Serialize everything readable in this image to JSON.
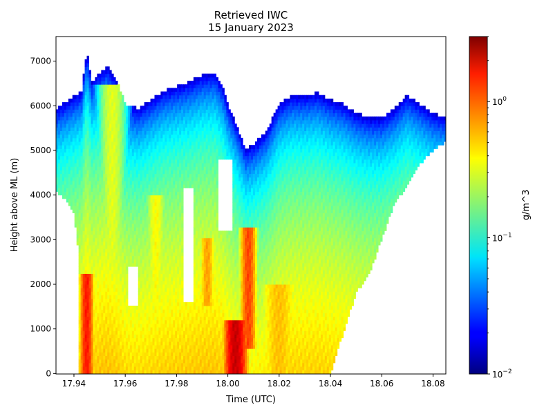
{
  "chart_data": {
    "type": "heatmap",
    "title": "Retrieved IWC",
    "subtitle": "15 January 2023",
    "xlabel": "Time (UTC)",
    "ylabel": "Height above ML (m)",
    "xlim": [
      17.933,
      18.085
    ],
    "ylim": [
      -10,
      7550
    ],
    "xticks": [
      "17.94",
      "17.96",
      "17.98",
      "18.00",
      "18.02",
      "18.04",
      "18.06",
      "18.08"
    ],
    "xtick_values": [
      17.94,
      17.96,
      17.98,
      18.0,
      18.02,
      18.04,
      18.06,
      18.08
    ],
    "yticks": [
      "0",
      "1000",
      "2000",
      "3000",
      "4000",
      "5000",
      "6000",
      "7000"
    ],
    "ytick_values": [
      0,
      1000,
      2000,
      3000,
      4000,
      5000,
      6000,
      7000
    ],
    "colorbar": {
      "label": "g/m^3",
      "scale": "log",
      "colormap": "jet",
      "range": [
        0.01,
        3.0
      ],
      "ticks": [
        {
          "value": 0.01,
          "base": "10",
          "exp": "−2"
        },
        {
          "value": 0.1,
          "base": "10",
          "exp": "−1"
        },
        {
          "value": 1.0,
          "base": "10",
          "exp": "0"
        }
      ]
    },
    "field": {
      "cloud_top": [
        [
          17.933,
          5900
        ],
        [
          17.938,
          6100
        ],
        [
          17.943,
          6300
        ],
        [
          17.945,
          7200
        ],
        [
          17.947,
          6500
        ],
        [
          17.95,
          6700
        ],
        [
          17.953,
          6850
        ],
        [
          17.957,
          6500
        ],
        [
          17.96,
          6000
        ],
        [
          17.965,
          5900
        ],
        [
          17.97,
          6100
        ],
        [
          17.975,
          6300
        ],
        [
          17.98,
          6400
        ],
        [
          17.985,
          6500
        ],
        [
          17.99,
          6650
        ],
        [
          17.995,
          6700
        ],
        [
          17.998,
          6400
        ],
        [
          18.0,
          6000
        ],
        [
          18.003,
          5600
        ],
        [
          18.007,
          5000
        ],
        [
          18.01,
          5100
        ],
        [
          18.015,
          5400
        ],
        [
          18.02,
          6000
        ],
        [
          18.025,
          6200
        ],
        [
          18.03,
          6200
        ],
        [
          18.035,
          6250
        ],
        [
          18.04,
          6100
        ],
        [
          18.045,
          6000
        ],
        [
          18.05,
          5800
        ],
        [
          18.055,
          5700
        ],
        [
          18.06,
          5700
        ],
        [
          18.065,
          5900
        ],
        [
          18.07,
          6200
        ],
        [
          18.075,
          6000
        ],
        [
          18.08,
          5800
        ],
        [
          18.085,
          5700
        ]
      ],
      "left_cloud_base": [
        [
          17.933,
          4100
        ],
        [
          17.938,
          3800
        ],
        [
          17.94,
          3600
        ],
        [
          17.942,
          2600
        ]
      ],
      "right_edge": [
        [
          18.04,
          0
        ],
        [
          18.045,
          900
        ],
        [
          18.05,
          1800
        ],
        [
          18.055,
          2200
        ],
        [
          18.06,
          3000
        ],
        [
          18.065,
          3800
        ],
        [
          18.07,
          4200
        ],
        [
          18.075,
          4700
        ],
        [
          18.08,
          5000
        ],
        [
          18.085,
          5200
        ]
      ],
      "cores": [
        {
          "t": 17.945,
          "h_min": 0,
          "h_max": 2200,
          "half_width": 0.0025,
          "iwc": 1.3
        },
        {
          "t": 17.955,
          "h_min": 0,
          "h_max": 6500,
          "half_width": 0.005,
          "iwc": 0.3
        },
        {
          "t": 17.972,
          "h_min": 0,
          "h_max": 4000,
          "half_width": 0.004,
          "iwc": 0.35
        },
        {
          "t": 17.992,
          "h_min": 1500,
          "h_max": 3000,
          "half_width": 0.003,
          "iwc": 0.6
        },
        {
          "t": 18.003,
          "h_min": 0,
          "h_max": 1200,
          "half_width": 0.004,
          "iwc": 2.0
        },
        {
          "t": 18.008,
          "h_min": 600,
          "h_max": 3300,
          "half_width": 0.003,
          "iwc": 1.0
        },
        {
          "t": 18.02,
          "h_min": 0,
          "h_max": 2000,
          "half_width": 0.008,
          "iwc": 0.5
        }
      ],
      "gaps": [
        {
          "t": 17.963,
          "h_min": 1500,
          "h_max": 2400,
          "half_width": 0.002
        },
        {
          "t": 17.985,
          "h_min": 1600,
          "h_max": 4200,
          "half_width": 0.002
        },
        {
          "t": 17.999,
          "h_min": 3200,
          "h_max": 4800,
          "half_width": 0.0025
        }
      ]
    }
  }
}
